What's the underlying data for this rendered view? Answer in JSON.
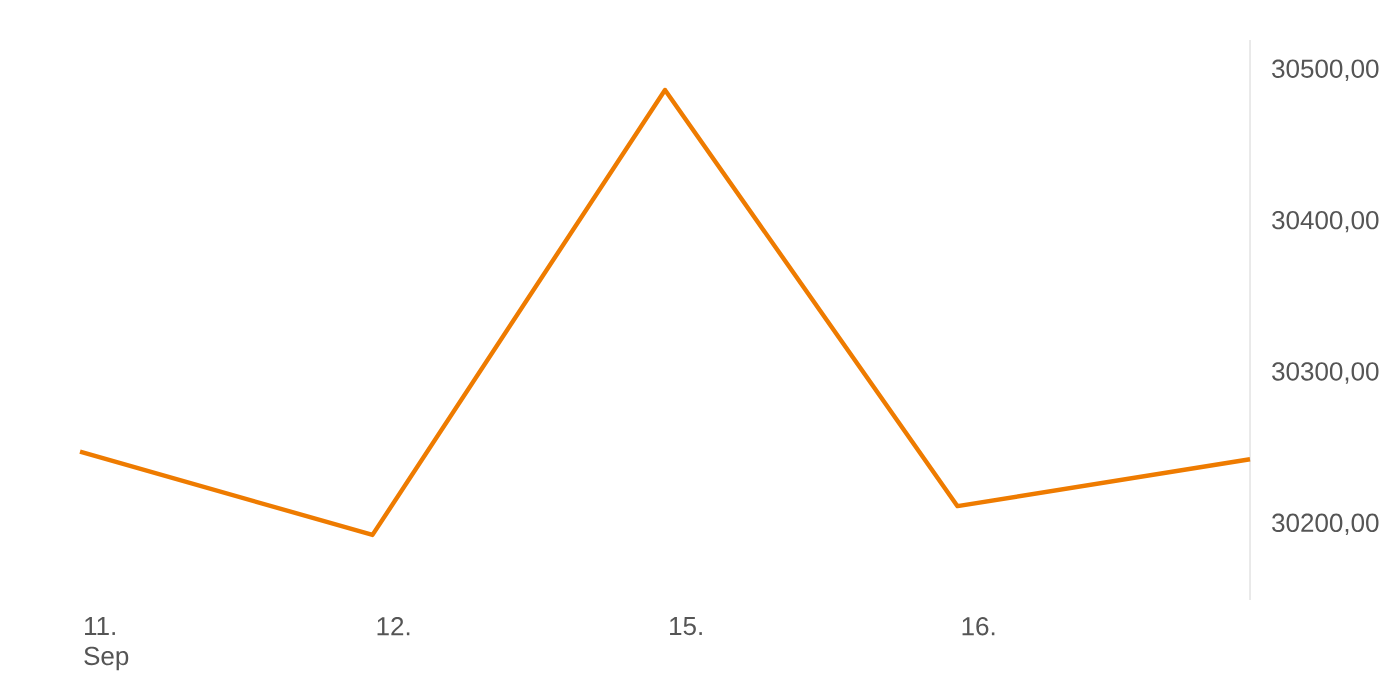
{
  "chart_data": {
    "type": "line",
    "categories": [
      "11. Sep",
      "12.",
      "15.",
      "16.",
      null
    ],
    "series": [
      {
        "color": "#ee7b00",
        "values": [
          30248,
          30193,
          30487,
          30212,
          30243
        ]
      }
    ],
    "ylim": [
      30150,
      30520
    ],
    "yticks": [
      {
        "value": 30200,
        "label": "30200,00"
      },
      {
        "value": 30300,
        "label": "30300,00"
      },
      {
        "value": 30400,
        "label": "30400,00"
      },
      {
        "value": 30500,
        "label": "30500,00"
      }
    ],
    "marker": "none",
    "line_style": "solid"
  }
}
